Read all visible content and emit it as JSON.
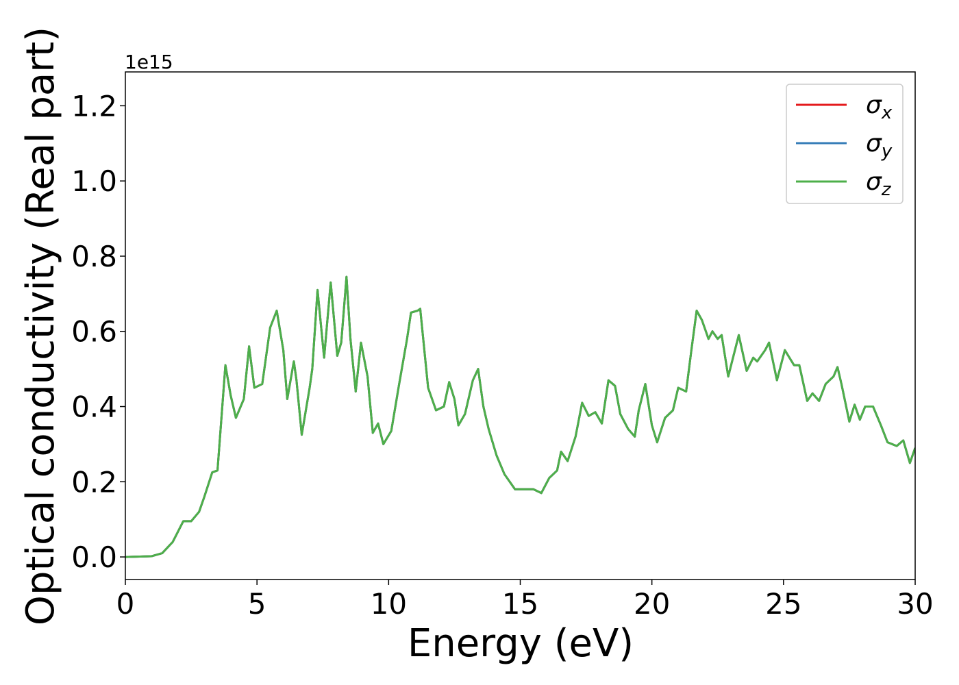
{
  "chart_data": {
    "type": "line",
    "xlabel": "Energy (eV)",
    "ylabel": "Optical conductivity (Real part)",
    "y_offset_label": "1e15",
    "x": [
      0,
      1.0,
      1.4,
      1.8,
      2.2,
      2.5,
      2.8,
      3.0,
      3.3,
      3.5,
      3.8,
      4.0,
      4.2,
      4.5,
      4.7,
      4.9,
      5.2,
      5.5,
      5.75,
      6.0,
      6.15,
      6.4,
      6.5,
      6.7,
      7.0,
      7.1,
      7.3,
      7.55,
      7.8,
      8.05,
      8.2,
      8.4,
      8.55,
      8.75,
      8.95,
      9.2,
      9.4,
      9.6,
      9.8,
      10.1,
      10.4,
      10.7,
      10.85,
      11.1,
      11.2,
      11.5,
      11.8,
      12.1,
      12.3,
      12.5,
      12.65,
      12.9,
      13.2,
      13.4,
      13.6,
      13.8,
      14.1,
      14.4,
      14.8,
      15.2,
      15.5,
      15.8,
      16.1,
      16.4,
      16.55,
      16.8,
      17.1,
      17.35,
      17.6,
      17.85,
      18.1,
      18.35,
      18.6,
      18.8,
      19.1,
      19.35,
      19.5,
      19.75,
      20.0,
      20.2,
      20.5,
      20.8,
      21.0,
      21.3,
      21.5,
      21.7,
      21.9,
      22.15,
      22.3,
      22.5,
      22.65,
      22.9,
      23.3,
      23.6,
      23.85,
      24.0,
      24.3,
      24.45,
      24.75,
      25.05,
      25.4,
      25.6,
      25.9,
      26.1,
      26.35,
      26.6,
      26.9,
      27.05,
      27.2,
      27.5,
      27.7,
      27.9,
      28.1,
      28.4,
      28.7,
      28.95,
      29.3,
      29.55,
      29.8,
      30.0
    ],
    "series": [
      {
        "name": "σx",
        "color": "#e41a1c",
        "values": [
          0,
          0.002,
          0.01,
          0.04,
          0.095,
          0.095,
          0.12,
          0.16,
          0.225,
          0.23,
          0.51,
          0.43,
          0.37,
          0.42,
          0.56,
          0.45,
          0.46,
          0.61,
          0.655,
          0.55,
          0.42,
          0.52,
          0.47,
          0.325,
          0.45,
          0.5,
          0.71,
          0.53,
          0.73,
          0.535,
          0.57,
          0.745,
          0.58,
          0.44,
          0.57,
          0.48,
          0.33,
          0.355,
          0.3,
          0.335,
          0.46,
          0.58,
          0.65,
          0.655,
          0.66,
          0.45,
          0.39,
          0.4,
          0.465,
          0.42,
          0.35,
          0.38,
          0.47,
          0.5,
          0.4,
          0.34,
          0.27,
          0.22,
          0.18,
          0.18,
          0.18,
          0.17,
          0.21,
          0.23,
          0.28,
          0.255,
          0.32,
          0.41,
          0.375,
          0.385,
          0.355,
          0.47,
          0.455,
          0.38,
          0.34,
          0.32,
          0.39,
          0.46,
          0.35,
          0.305,
          0.37,
          0.39,
          0.45,
          0.44,
          0.55,
          0.655,
          0.63,
          0.58,
          0.6,
          0.58,
          0.59,
          0.48,
          0.59,
          0.495,
          0.53,
          0.52,
          0.55,
          0.57,
          0.47,
          0.55,
          0.51,
          0.51,
          0.415,
          0.435,
          0.415,
          0.46,
          0.48,
          0.505,
          0.46,
          0.36,
          0.405,
          0.365,
          0.4,
          0.4,
          0.35,
          0.305,
          0.295,
          0.31,
          0.25,
          0.29
        ]
      },
      {
        "name": "σy",
        "color": "#377eb8",
        "values": [
          0,
          0.002,
          0.01,
          0.04,
          0.095,
          0.095,
          0.12,
          0.16,
          0.225,
          0.23,
          0.51,
          0.43,
          0.37,
          0.42,
          0.56,
          0.45,
          0.46,
          0.61,
          0.655,
          0.55,
          0.42,
          0.52,
          0.47,
          0.325,
          0.45,
          0.5,
          0.71,
          0.53,
          0.73,
          0.535,
          0.57,
          0.745,
          0.58,
          0.44,
          0.57,
          0.48,
          0.33,
          0.355,
          0.3,
          0.335,
          0.46,
          0.58,
          0.65,
          0.655,
          0.66,
          0.45,
          0.39,
          0.4,
          0.465,
          0.42,
          0.35,
          0.38,
          0.47,
          0.5,
          0.4,
          0.34,
          0.27,
          0.22,
          0.18,
          0.18,
          0.18,
          0.17,
          0.21,
          0.23,
          0.28,
          0.255,
          0.32,
          0.41,
          0.375,
          0.385,
          0.355,
          0.47,
          0.455,
          0.38,
          0.34,
          0.32,
          0.39,
          0.46,
          0.35,
          0.305,
          0.37,
          0.39,
          0.45,
          0.44,
          0.55,
          0.655,
          0.63,
          0.58,
          0.6,
          0.58,
          0.59,
          0.48,
          0.59,
          0.495,
          0.53,
          0.52,
          0.55,
          0.57,
          0.47,
          0.55,
          0.51,
          0.51,
          0.415,
          0.435,
          0.415,
          0.46,
          0.48,
          0.505,
          0.46,
          0.36,
          0.405,
          0.365,
          0.4,
          0.4,
          0.35,
          0.305,
          0.295,
          0.31,
          0.25,
          0.29
        ]
      },
      {
        "name": "σz",
        "color": "#4daf4a",
        "values": [
          0,
          0.002,
          0.01,
          0.04,
          0.095,
          0.095,
          0.12,
          0.16,
          0.225,
          0.23,
          0.51,
          0.43,
          0.37,
          0.42,
          0.56,
          0.45,
          0.46,
          0.61,
          0.655,
          0.55,
          0.42,
          0.52,
          0.47,
          0.325,
          0.45,
          0.5,
          0.71,
          0.53,
          0.73,
          0.535,
          0.57,
          0.745,
          0.58,
          0.44,
          0.57,
          0.48,
          0.33,
          0.355,
          0.3,
          0.335,
          0.46,
          0.58,
          0.65,
          0.655,
          0.66,
          0.45,
          0.39,
          0.4,
          0.465,
          0.42,
          0.35,
          0.38,
          0.47,
          0.5,
          0.4,
          0.34,
          0.27,
          0.22,
          0.18,
          0.18,
          0.18,
          0.17,
          0.21,
          0.23,
          0.28,
          0.255,
          0.32,
          0.41,
          0.375,
          0.385,
          0.355,
          0.47,
          0.455,
          0.38,
          0.34,
          0.32,
          0.39,
          0.46,
          0.35,
          0.305,
          0.37,
          0.39,
          0.45,
          0.44,
          0.55,
          0.655,
          0.63,
          0.58,
          0.6,
          0.58,
          0.59,
          0.48,
          0.59,
          0.495,
          0.53,
          0.52,
          0.55,
          0.57,
          0.47,
          0.55,
          0.51,
          0.51,
          0.415,
          0.435,
          0.415,
          0.46,
          0.48,
          0.505,
          0.46,
          0.36,
          0.405,
          0.365,
          0.4,
          0.4,
          0.35,
          0.305,
          0.295,
          0.31,
          0.25,
          0.29
        ]
      }
    ],
    "xlim": [
      0,
      30
    ],
    "xticks": [
      0,
      5,
      10,
      15,
      20,
      25,
      30
    ],
    "ylim": [
      -0.06,
      1.29
    ],
    "yticks": [
      {
        "value": 0,
        "label": "0.0"
      },
      0.2,
      0.4,
      0.6,
      0.8,
      {
        "value": 1,
        "label": "1.0"
      },
      1.2
    ],
    "legend": "upper right",
    "grid": false
  }
}
